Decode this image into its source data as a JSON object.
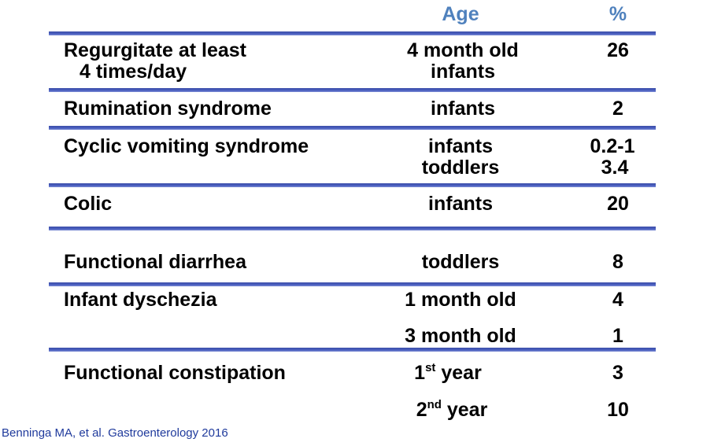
{
  "header": {
    "age": "Age",
    "percent": "%"
  },
  "rows": [
    {
      "condition": "Regurgitate at least",
      "condition_line2": "4 times/day",
      "age": "4 month old",
      "age_line2": "infants",
      "percent": "26"
    },
    {
      "condition": "Rumination syndrome",
      "age": "infants",
      "percent": "2"
    },
    {
      "condition": "Cyclic vomiting syndrome",
      "age": "infants",
      "age_line2": "toddlers",
      "percent": "0.2-1",
      "percent_line2": "3.4"
    },
    {
      "condition": "Colic",
      "age": "infants",
      "percent": "20"
    },
    {
      "condition": "Functional diarrhea",
      "age": "toddlers",
      "percent": "8"
    },
    {
      "condition": "Infant dyschezia",
      "age": "1 month old",
      "percent": "4",
      "age_b": "3 month old",
      "percent_b": "1"
    },
    {
      "condition": "Functional constipation",
      "age_num": "1",
      "age_sup": "st",
      "age_word": " year",
      "percent": "3",
      "age_b_num": "2",
      "age_b_sup": "nd",
      "age_b_word": " year",
      "percent_b": "10"
    }
  ],
  "citation": "Benninga MA, et al. Gastroenterology 2016",
  "colors": {
    "header": "#4f81bd",
    "rule": "#3b4ea8",
    "citation": "#1f3a9c"
  }
}
